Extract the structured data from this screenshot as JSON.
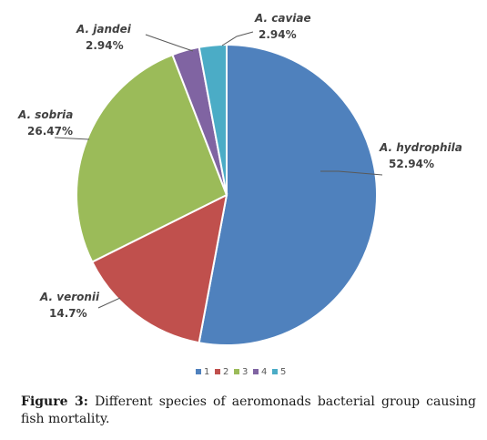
{
  "chart_data": {
    "type": "pie",
    "categories": [
      "1",
      "2",
      "3",
      "4",
      "5"
    ],
    "values": [
      52.94,
      14.7,
      26.47,
      2.94,
      2.94
    ],
    "slice_labels": [
      {
        "name": "A. hydrophila",
        "value": "52.94%"
      },
      {
        "name": "A. veronii",
        "value": "14.7%"
      },
      {
        "name": "A. sobria",
        "value": "26.47%"
      },
      {
        "name": "A. jandei",
        "value": "2.94%"
      },
      {
        "name": "A. caviae",
        "value": "2.94%"
      }
    ],
    "colors": [
      "#4f81bd",
      "#c0504d",
      "#9bbb59",
      "#8064a2",
      "#4bacc6"
    ],
    "start_angle_deg": 0,
    "direction": "clockwise",
    "legend_position": "bottom"
  },
  "caption": {
    "prefix": "Figure 3:",
    "text": "Different species of aeromonads bacterial group causing fish mortality."
  }
}
